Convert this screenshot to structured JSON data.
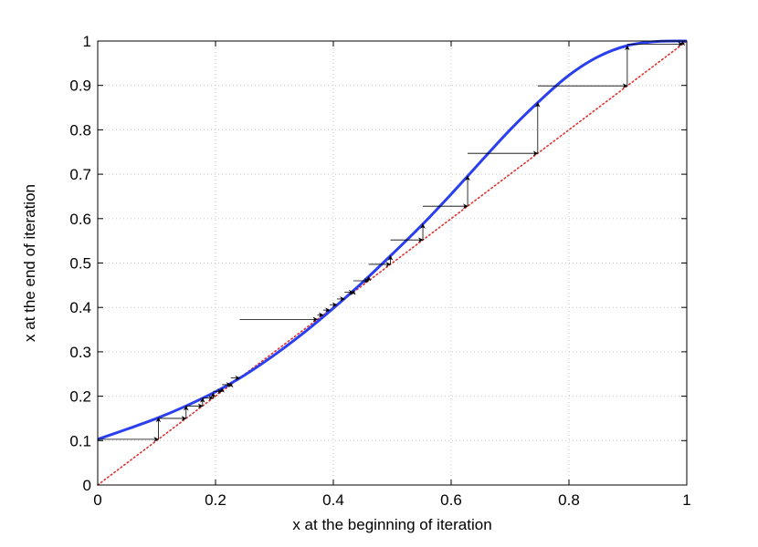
{
  "chart_data": {
    "type": "line",
    "title": "",
    "xlabel": "x at the beginning of iteration",
    "ylabel": "x at the end of iteration",
    "xlim": [
      0,
      1
    ],
    "ylim": [
      0,
      1
    ],
    "grid": true,
    "x_ticks": [
      "0",
      "0.2",
      "0.4",
      "0.6",
      "0.8",
      "1"
    ],
    "y_ticks": [
      "0",
      "0.1",
      "0.2",
      "0.3",
      "0.4",
      "0.5",
      "0.6",
      "0.7",
      "0.8",
      "0.9",
      "1"
    ],
    "series": [
      {
        "style": "solid",
        "color": "#2a3ff0",
        "x": [
          0,
          0.05,
          0.1,
          0.15,
          0.2,
          0.25,
          0.3,
          0.35,
          0.4,
          0.45,
          0.5,
          0.55,
          0.6,
          0.65,
          0.7,
          0.75,
          0.8,
          0.85,
          0.9,
          0.95,
          1
        ],
        "y": [
          0.103,
          0.126,
          0.15,
          0.178,
          0.21,
          0.248,
          0.293,
          0.343,
          0.398,
          0.457,
          0.52,
          0.585,
          0.655,
          0.728,
          0.8,
          0.865,
          0.923,
          0.965,
          0.99,
          0.999,
          1
        ]
      },
      {
        "style": "dotted",
        "color": "#e03030",
        "x": [
          0,
          1
        ],
        "y": [
          0,
          1
        ]
      }
    ],
    "cobweb": {
      "color": "#000000",
      "x": [
        0,
        0.103,
        0.15,
        0.178,
        0.196,
        0.211,
        0.226,
        0.241,
        0.373,
        0.383,
        0.394,
        0.406,
        0.419,
        0.434,
        0.46,
        0.497,
        0.552,
        0.628,
        0.747,
        0.899,
        0.993
      ]
    }
  }
}
